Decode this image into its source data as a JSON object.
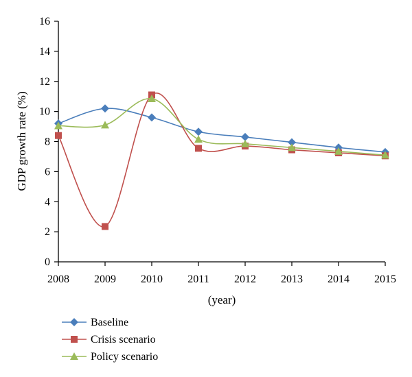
{
  "chart_data": {
    "type": "line",
    "title": "",
    "xlabel": "(year)",
    "ylabel": "GDP growth rate (%)",
    "categories": [
      "2008",
      "2009",
      "2010",
      "2011",
      "2012",
      "2013",
      "2014",
      "2015"
    ],
    "ylim": [
      0,
      16
    ],
    "yticks": [
      "0",
      "2",
      "4",
      "6",
      "8",
      "10",
      "12",
      "14",
      "16"
    ],
    "grid": false,
    "smooth": true,
    "legend_position": "bottom-left",
    "series": [
      {
        "name": "Baseline",
        "marker": "diamond",
        "color": "#4a7ebb",
        "values": [
          9.2,
          10.2,
          9.6,
          8.65,
          8.3,
          7.95,
          7.6,
          7.3
        ]
      },
      {
        "name": "Crisis scenario",
        "marker": "square",
        "color": "#c0504d",
        "values": [
          8.4,
          2.35,
          11.1,
          7.55,
          7.7,
          7.45,
          7.25,
          7.05
        ]
      },
      {
        "name": "Policy scenario",
        "marker": "triangle",
        "color": "#9bbb59",
        "values": [
          9.05,
          9.1,
          10.85,
          8.15,
          7.85,
          7.6,
          7.35,
          7.1
        ]
      }
    ]
  }
}
